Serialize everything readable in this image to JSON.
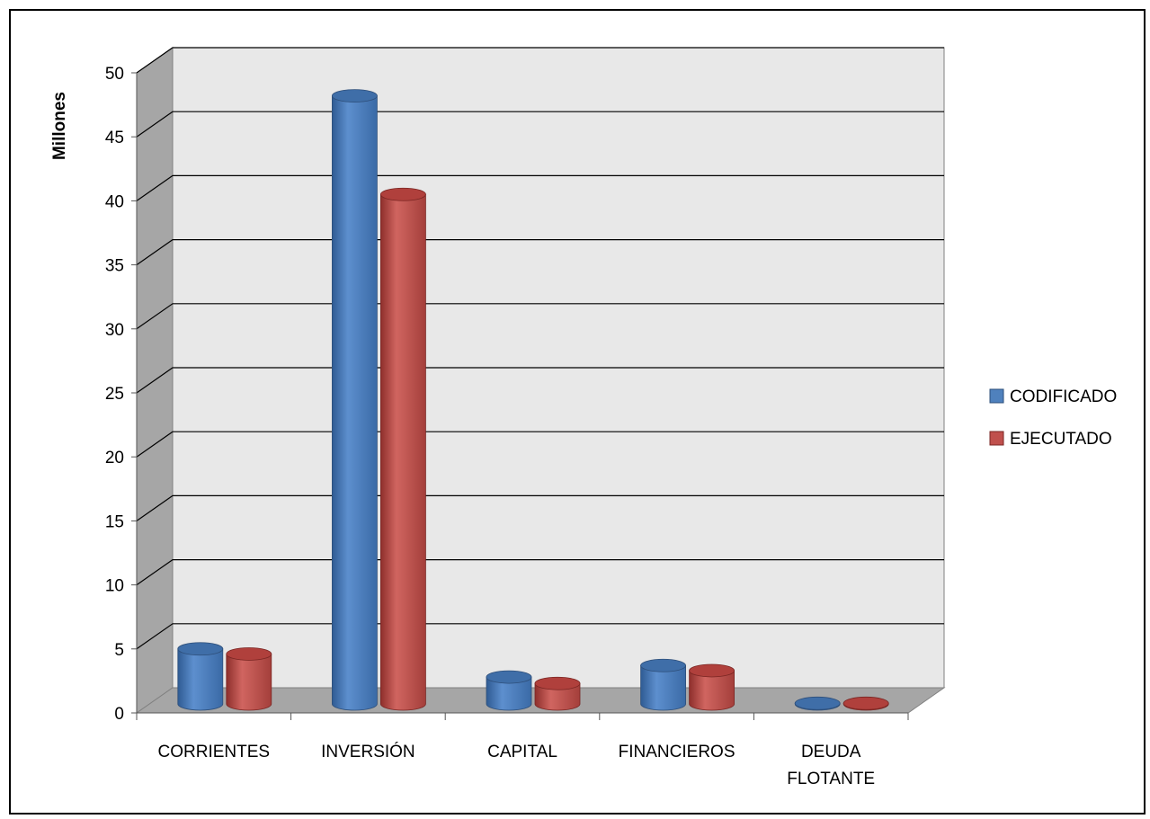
{
  "chart_data": {
    "type": "bar",
    "title": "",
    "xlabel": "",
    "ylabel": "Millones",
    "ylim": [
      0,
      50
    ],
    "yticks": [
      "0",
      "5",
      "10",
      "15",
      "20",
      "25",
      "30",
      "35",
      "40",
      "45",
      "50"
    ],
    "categories": [
      [
        "CORRIENTES"
      ],
      [
        "INVERSIÓN"
      ],
      [
        "CAPITAL"
      ],
      [
        "FINANCIEROS"
      ],
      [
        "DEUDA",
        "FLOTANTE"
      ]
    ],
    "series": [
      {
        "name": "CODIFICADO",
        "values": [
          4.3,
          47.5,
          2.1,
          3.0,
          0.05
        ]
      },
      {
        "name": "EJECUTADO",
        "values": [
          3.9,
          39.8,
          1.6,
          2.6,
          0.05
        ]
      }
    ],
    "grid": true,
    "legend_position": "right",
    "style": "3d-cylinder",
    "colors": {
      "CODIFICADO": "#4f81bd",
      "EJECUTADO": "#c0504d",
      "wall": "#e8e8e8",
      "side_wall": "#a6a6a6",
      "floor": "#a6a6a6",
      "grid": "#000000"
    }
  }
}
